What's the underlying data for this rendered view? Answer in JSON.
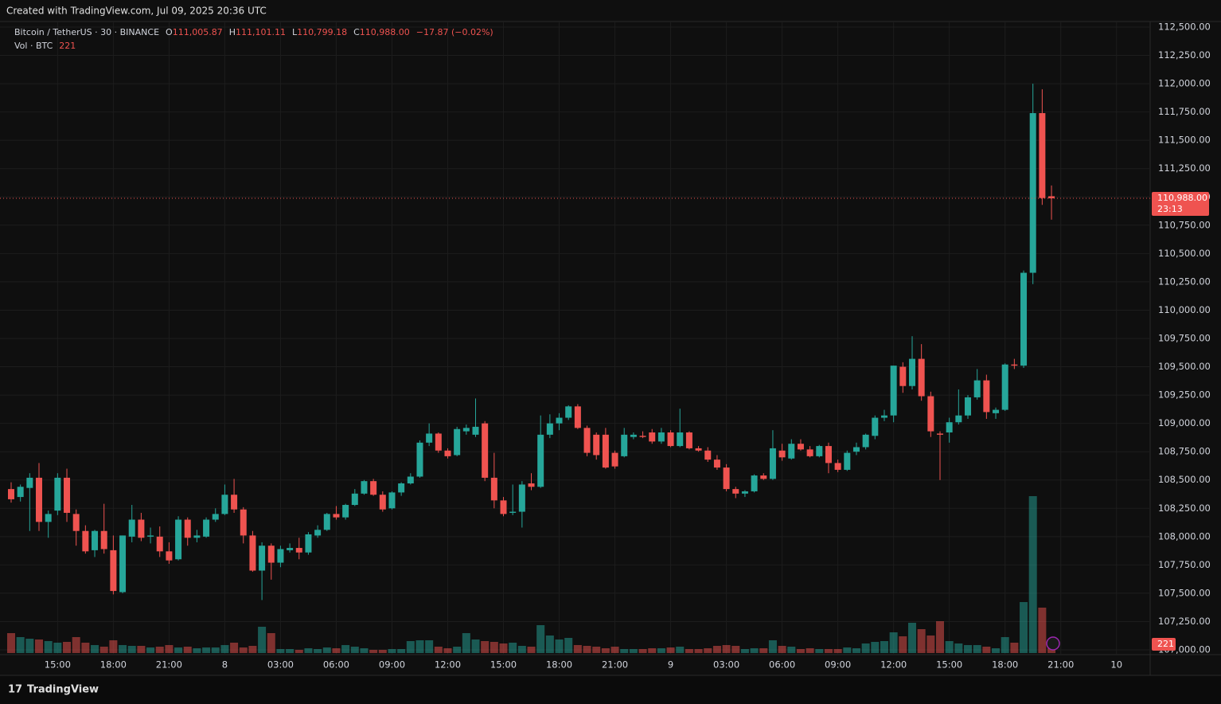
{
  "header": {
    "created": "Created with TradingView.com, Jul 09, 2025 20:36 UTC"
  },
  "footer": {
    "brand": "TradingView"
  },
  "chart_data": {
    "type": "candlestick",
    "symbol": "Bitcoin / TetherUS · 30 · BINANCE",
    "legend": {
      "o": "O",
      "open": "111,005.87",
      "h": "H",
      "high": "111,101.11",
      "l": "L",
      "low": "110,799.18",
      "c": "C",
      "close": "110,988.00",
      "change": "−17.87 (−0.02%)"
    },
    "volume_title": "Vol · BTC",
    "up_color": "#26a69a",
    "down_color": "#ef5350",
    "current_price": {
      "value": 110988,
      "label": "110,988.00"
    },
    "countdown": "23:13",
    "ylim": [
      106958,
      112549
    ],
    "yticks": [
      {
        "value": 107000,
        "label": "107,000.00"
      },
      {
        "value": 107250,
        "label": "107,250.00"
      },
      {
        "value": 107500,
        "label": "107,500.00"
      },
      {
        "value": 107750,
        "label": "107,750.00"
      },
      {
        "value": 108000,
        "label": "108,000.00"
      },
      {
        "value": 108250,
        "label": "108,250.00"
      },
      {
        "value": 108500,
        "label": "108,500.00"
      },
      {
        "value": 108750,
        "label": "108,750.00"
      },
      {
        "value": 109000,
        "label": "109,000.00"
      },
      {
        "value": 109250,
        "label": "109,250.00"
      },
      {
        "value": 109500,
        "label": "109,500.00"
      },
      {
        "value": 109750,
        "label": "109,750.00"
      },
      {
        "value": 110000,
        "label": "110,000.00"
      },
      {
        "value": 110250,
        "label": "110,250.00"
      },
      {
        "value": 110500,
        "label": "110,500.00"
      },
      {
        "value": 110750,
        "label": "110,750.00"
      },
      {
        "value": 111000,
        "label": "111,000.00"
      },
      {
        "value": 111250,
        "label": "111,250.00"
      },
      {
        "value": 111500,
        "label": "111,500.00"
      },
      {
        "value": 111750,
        "label": "111,750.00"
      },
      {
        "value": 112000,
        "label": "112,000.00"
      },
      {
        "value": 112250,
        "label": "112,250.00"
      },
      {
        "value": 112500,
        "label": "112,500.00"
      }
    ],
    "xticks": [
      {
        "value": 5,
        "label": "15:00"
      },
      {
        "value": 11,
        "label": "18:00"
      },
      {
        "value": 17,
        "label": "21:00"
      },
      {
        "value": 23,
        "label": "8"
      },
      {
        "value": 29,
        "label": "03:00"
      },
      {
        "value": 35,
        "label": "06:00"
      },
      {
        "value": 41,
        "label": "09:00"
      },
      {
        "value": 47,
        "label": "12:00"
      },
      {
        "value": 53,
        "label": "15:00"
      },
      {
        "value": 59,
        "label": "18:00"
      },
      {
        "value": 65,
        "label": "21:00"
      },
      {
        "value": 71,
        "label": "9"
      },
      {
        "value": 77,
        "label": "03:00"
      },
      {
        "value": 83,
        "label": "06:00"
      },
      {
        "value": 89,
        "label": "09:00"
      },
      {
        "value": 95,
        "label": "12:00"
      },
      {
        "value": 101,
        "label": "15:00"
      },
      {
        "value": 107,
        "label": "18:00"
      },
      {
        "value": 113,
        "label": "21:00"
      },
      {
        "value": 119,
        "label": "10"
      }
    ],
    "open": [
      108420,
      108350,
      108430,
      108520,
      108130,
      108230,
      108520,
      108200,
      108050,
      107880,
      108050,
      107880,
      107510,
      108000,
      108150,
      108000,
      108000,
      107870,
      107800,
      108150,
      107990,
      108000,
      108150,
      108200,
      108370,
      108240,
      108010,
      107700,
      107920,
      107770,
      107880,
      107900,
      107860,
      108010,
      108060,
      108200,
      108170,
      108280,
      108380,
      108490,
      108370,
      108250,
      108390,
      108470,
      108530,
      108830,
      108910,
      108760,
      108720,
      108930,
      108900,
      109000,
      108520,
      108320,
      108210,
      108220,
      108470,
      108440,
      108900,
      109000,
      109050,
      109150,
      108960,
      108900,
      108900,
      108740,
      108710,
      108880,
      108890,
      108920,
      108840,
      108920,
      108800,
      108920,
      108780,
      108760,
      108680,
      108610,
      108420,
      108380,
      108400,
      108540,
      108510,
      108760,
      108690,
      108820,
      108770,
      108710,
      108800,
      108650,
      108590,
      108750,
      108790,
      108890,
      109050,
      109070,
      109500,
      109330,
      109570,
      109240,
      108910,
      108920,
      109010,
      109070,
      109230,
      109380,
      109090,
      109120,
      109520,
      109510,
      110330,
      111740,
      111005.87
    ],
    "high": [
      108480,
      108460,
      108560,
      108650,
      108230,
      108560,
      108600,
      108240,
      108100,
      108060,
      108290,
      108010,
      108010,
      108280,
      108210,
      108080,
      108090,
      107950,
      108180,
      108170,
      108060,
      108170,
      108250,
      108460,
      108510,
      108260,
      108050,
      107950,
      107940,
      107920,
      107940,
      107990,
      108040,
      108100,
      108210,
      108270,
      108290,
      108420,
      108500,
      108510,
      108400,
      108400,
      108480,
      108560,
      108850,
      109000,
      108920,
      108780,
      108970,
      108990,
      109220,
      109020,
      108740,
      108350,
      108460,
      108490,
      108560,
      109070,
      109080,
      109090,
      109160,
      109170,
      108980,
      108920,
      108960,
      108760,
      108960,
      108920,
      108930,
      108950,
      108960,
      108940,
      109130,
      108930,
      108800,
      108790,
      108720,
      108640,
      108440,
      108410,
      108550,
      108560,
      108940,
      108820,
      108860,
      108860,
      108800,
      108810,
      108830,
      108680,
      108760,
      108830,
      108910,
      109070,
      109120,
      109510,
      109540,
      109770,
      109700,
      109280,
      108930,
      109050,
      109300,
      109250,
      109480,
      109430,
      109140,
      109530,
      109570,
      110350,
      112000,
      111950,
      111101.11
    ],
    "low": [
      108300,
      108310,
      108050,
      108050,
      107990,
      108190,
      108130,
      107920,
      107850,
      107820,
      107850,
      107490,
      107500,
      107950,
      107960,
      107940,
      107820,
      107760,
      107790,
      107920,
      107950,
      107990,
      108130,
      108190,
      108210,
      107940,
      107690,
      107440,
      107620,
      107730,
      107860,
      107800,
      107840,
      107990,
      108050,
      108150,
      108150,
      108270,
      108370,
      108360,
      108220,
      108240,
      108360,
      108460,
      108520,
      108800,
      108740,
      108690,
      108710,
      108900,
      108880,
      108490,
      108250,
      108180,
      108190,
      108080,
      108410,
      108430,
      108870,
      108940,
      109030,
      108950,
      108710,
      108680,
      108600,
      108600,
      108700,
      108860,
      108870,
      108820,
      108820,
      108790,
      108790,
      108770,
      108750,
      108660,
      108590,
      108400,
      108340,
      108350,
      108390,
      108500,
      108500,
      108670,
      108680,
      108760,
      108700,
      108700,
      108560,
      108570,
      108580,
      108720,
      108770,
      108860,
      109020,
      109010,
      109270,
      109300,
      109200,
      108880,
      108500,
      108830,
      108990,
      109040,
      109210,
      109040,
      109040,
      109110,
      109480,
      109490,
      110230,
      110930,
      110799.18
    ],
    "close": [
      108330,
      108440,
      108520,
      108130,
      108200,
      108520,
      108210,
      108050,
      107870,
      108050,
      107890,
      107520,
      108010,
      108150,
      107990,
      108010,
      107870,
      107790,
      108150,
      107990,
      108010,
      108150,
      108200,
      108370,
      108240,
      108010,
      107700,
      107920,
      107770,
      107890,
      107900,
      107860,
      108020,
      108060,
      108200,
      108170,
      108280,
      108380,
      108490,
      108370,
      108240,
      108390,
      108470,
      108530,
      108830,
      108910,
      108760,
      108710,
      108950,
      108960,
      108970,
      108520,
      108320,
      108200,
      108220,
      108460,
      108440,
      108900,
      109000,
      109050,
      109150,
      108960,
      108740,
      108720,
      108610,
      108620,
      108900,
      108900,
      108880,
      108840,
      108920,
      108800,
      108920,
      108780,
      108760,
      108680,
      108610,
      108420,
      108380,
      108400,
      108540,
      108510,
      108780,
      108700,
      108820,
      108770,
      108710,
      108800,
      108650,
      108590,
      108740,
      108790,
      108900,
      109050,
      109070,
      109510,
      109330,
      109570,
      109240,
      108930,
      108900,
      109010,
      109070,
      109230,
      109380,
      109100,
      109120,
      109520,
      109510,
      110330,
      111740,
      110990,
      110988
    ],
    "volume": {
      "values": [
        500,
        400,
        360,
        340,
        300,
        260,
        280,
        400,
        260,
        200,
        160,
        320,
        200,
        180,
        180,
        140,
        160,
        200,
        140,
        160,
        120,
        140,
        140,
        200,
        260,
        140,
        180,
        660,
        500,
        100,
        100,
        80,
        120,
        100,
        140,
        120,
        200,
        160,
        120,
        80,
        80,
        100,
        100,
        300,
        320,
        320,
        160,
        120,
        160,
        500,
        340,
        300,
        280,
        240,
        260,
        180,
        160,
        700,
        440,
        340,
        380,
        200,
        180,
        160,
        120,
        160,
        100,
        100,
        100,
        120,
        120,
        140,
        160,
        100,
        100,
        120,
        180,
        200,
        180,
        100,
        120,
        120,
        320,
        180,
        160,
        100,
        120,
        100,
        100,
        100,
        140,
        120,
        240,
        280,
        300,
        520,
        420,
        760,
        600,
        440,
        800,
        300,
        240,
        200,
        200,
        160,
        120,
        400,
        260,
        1280,
        3940,
        1140,
        221
      ]
    }
  }
}
